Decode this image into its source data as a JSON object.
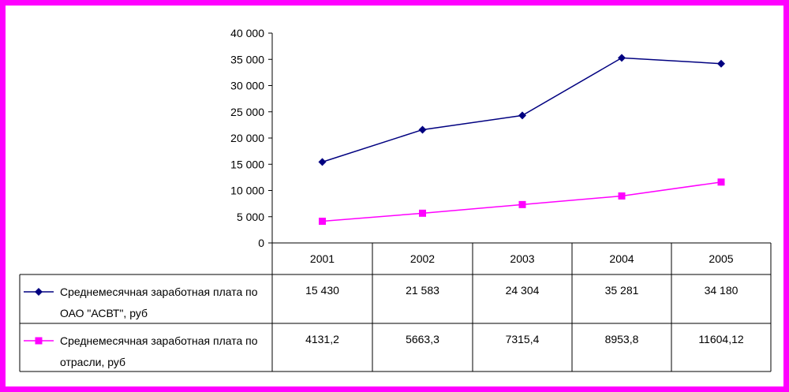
{
  "chart_data": {
    "type": "line",
    "title": "",
    "xlabel": "",
    "ylabel": "",
    "categories": [
      "2001",
      "2002",
      "2003",
      "2004",
      "2005"
    ],
    "ylim": [
      0,
      40000
    ],
    "yticks": [
      "0",
      "5 000",
      "10 000",
      "15 000",
      "20 000",
      "25 000",
      "30 000",
      "35 000",
      "40 000"
    ],
    "grid": false,
    "legend": "data-table",
    "series": [
      {
        "name_lines": [
          "Среднемесячная заработная плата по",
          "ОАО \"АСВТ\", руб"
        ],
        "values": [
          15430,
          21583,
          24304,
          35281,
          34180
        ],
        "labels": [
          "15 430",
          "21 583",
          "24 304",
          "35 281",
          "34 180"
        ],
        "color": "#000080",
        "marker": "diamond"
      },
      {
        "name_lines": [
          "Среднемесячная заработная плата по",
          "отрасли,  руб"
        ],
        "values": [
          4131.2,
          5663.3,
          7315.4,
          8953.8,
          11604.12
        ],
        "labels": [
          "4131,2",
          "5663,3",
          "7315,4",
          "8953,8",
          "11604,12"
        ],
        "color": "#ff00ff",
        "marker": "square"
      }
    ]
  }
}
